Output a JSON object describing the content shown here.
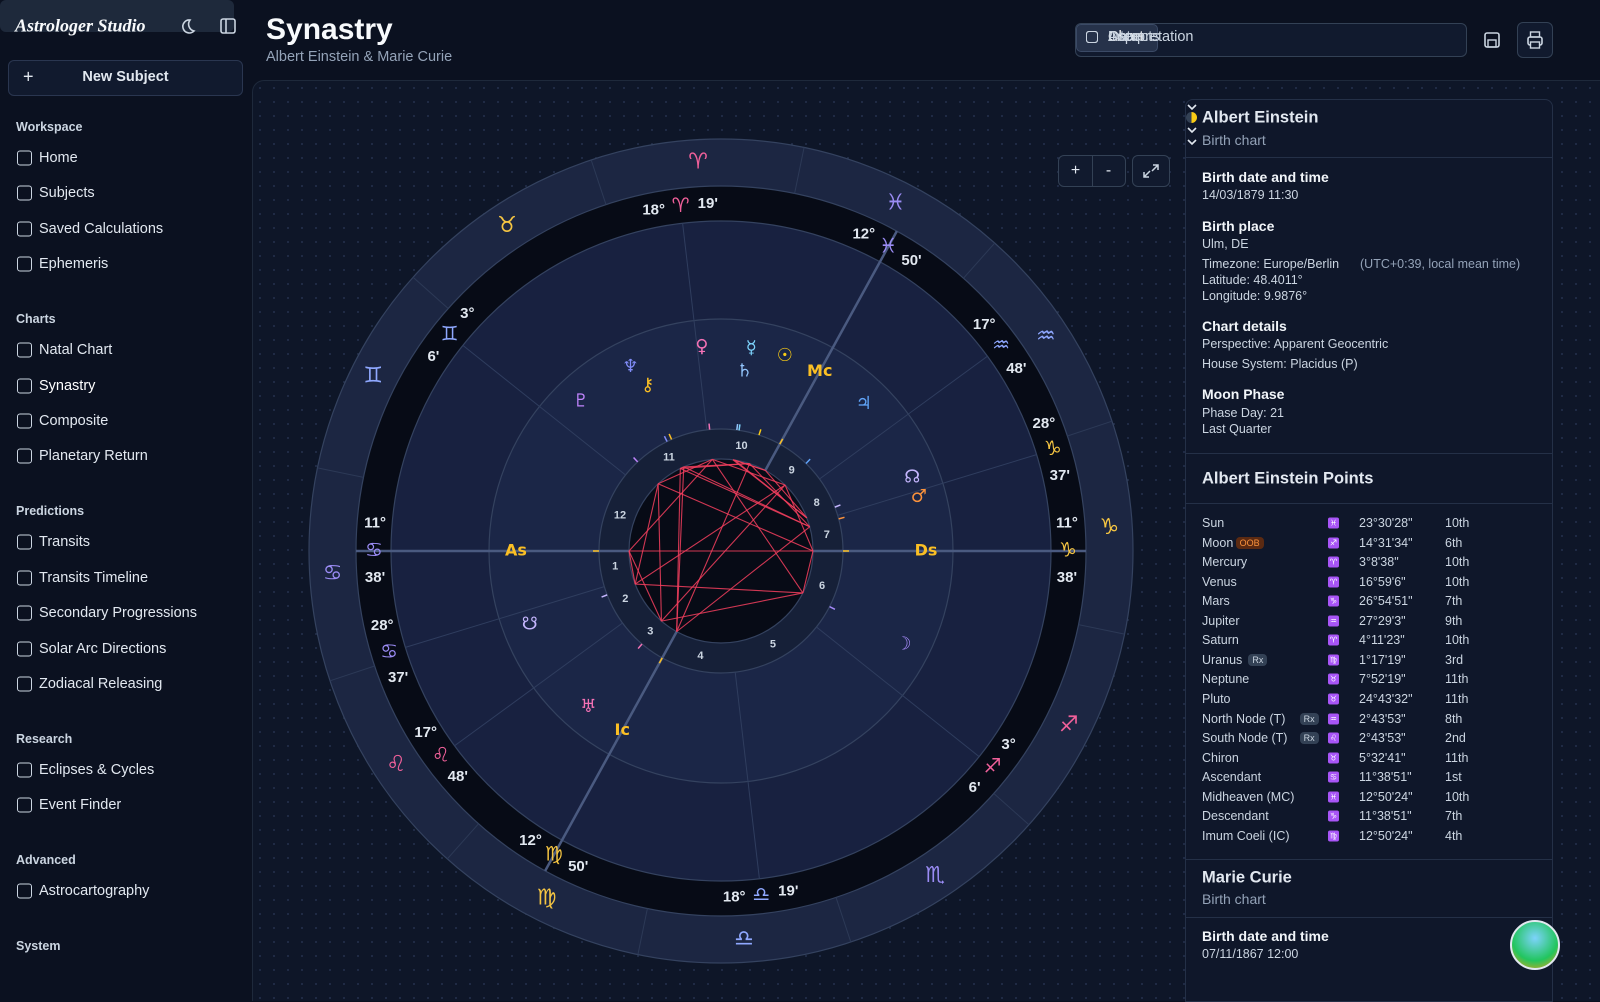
{
  "app": {
    "name": "Astrologer Studio"
  },
  "sidebar": {
    "new_subject": "New Subject",
    "sections": [
      {
        "title": "Workspace",
        "items": [
          "Home",
          "Subjects",
          "Saved Calculations",
          "Ephemeris"
        ]
      },
      {
        "title": "Charts",
        "items": [
          "Natal Chart",
          "Synastry",
          "Composite",
          "Planetary Return"
        ]
      },
      {
        "title": "Predictions",
        "items": [
          "Transits",
          "Transits Timeline",
          "Secondary Progressions",
          "Solar Arc Directions",
          "Zodiacal Releasing"
        ]
      },
      {
        "title": "Research",
        "items": [
          "Eclipses & Cycles",
          "Event Finder"
        ]
      },
      {
        "title": "Advanced",
        "items": [
          "Astrocartography"
        ]
      },
      {
        "title": "System",
        "items": []
      }
    ]
  },
  "header": {
    "title": "Synastry",
    "subtitle": "Albert Einstein & Marie Curie",
    "tabs": [
      "Chart",
      "Aspects",
      "Data",
      "Interpretation"
    ]
  },
  "wheel": {
    "zoom_in": "+",
    "zoom_out": "-",
    "signs": [
      "♈",
      "♉",
      "♊",
      "♋",
      "♌",
      "♍",
      "♎",
      "♏",
      "♐",
      "♑",
      "♒",
      "♓"
    ],
    "cusps": [
      {
        "deg": "11°",
        "sign": "♋",
        "min": "38'"
      },
      {
        "deg": "28°",
        "sign": "♋",
        "min": "37'"
      },
      {
        "deg": "17°",
        "sign": "♌",
        "min": "48'"
      },
      {
        "deg": "12°",
        "sign": "♍",
        "min": "50'"
      },
      {
        "deg": "18°",
        "sign": "♎",
        "min": "19'"
      },
      {
        "deg": "3°",
        "sign": "♐",
        "min": "6'"
      },
      {
        "deg": "11°",
        "sign": "♑",
        "min": "38'"
      },
      {
        "deg": "28°",
        "sign": "♑",
        "min": "37'"
      },
      {
        "deg": "17°",
        "sign": "♒",
        "min": "48'"
      },
      {
        "deg": "12°",
        "sign": "♓",
        "min": "50'"
      },
      {
        "deg": "18°",
        "sign": "♈",
        "min": "19'"
      },
      {
        "deg": "3°",
        "sign": "♊",
        "min": "6'"
      }
    ],
    "house_numbers": [
      "1",
      "2",
      "3",
      "4",
      "5",
      "6",
      "7",
      "8",
      "9",
      "10",
      "11",
      "12"
    ],
    "point_glyphs": [
      "☉",
      "☽",
      "☿",
      "♀",
      "♂",
      "♃",
      "♄",
      "♅",
      "♆",
      "♇",
      "☊",
      "☋",
      "⚷",
      "As",
      "Mc",
      "Ds",
      "Ic"
    ]
  },
  "panel": {
    "einstein": {
      "name": "Albert Einstein",
      "subtitle": "Birth chart",
      "birth_label": "Birth date and time",
      "birth": "14/03/1879 11:30",
      "place_label": "Birth place",
      "place": "Ulm, DE",
      "timezone": "Timezone: Europe/Berlin",
      "timezone_note": "(UTC+0:39, local mean time)",
      "latitude": "Latitude: 48.4011°",
      "longitude": "Longitude: 9.9876°",
      "details_label": "Chart details",
      "perspective": "Perspective: Apparent Geocentric",
      "house_system": "House System: Placidus (P)",
      "moon_label": "Moon Phase",
      "phase_day": "Phase Day: 21",
      "phase": "Last Quarter"
    },
    "points": {
      "title": "Albert Einstein Points",
      "rows": [
        {
          "name": "Sun",
          "sign": "♓",
          "position": "23°30'28\"",
          "house": "10th"
        },
        {
          "name": "Moon",
          "badge": "OOB",
          "sign": "♐",
          "position": "14°31'34\"",
          "house": "6th"
        },
        {
          "name": "Mercury",
          "sign": "♈",
          "position": "3°8'38\"",
          "house": "10th"
        },
        {
          "name": "Venus",
          "sign": "♈",
          "position": "16°59'6\"",
          "house": "10th"
        },
        {
          "name": "Mars",
          "sign": "♑",
          "position": "26°54'51\"",
          "house": "7th"
        },
        {
          "name": "Jupiter",
          "sign": "♒",
          "position": "27°29'3\"",
          "house": "9th"
        },
        {
          "name": "Saturn",
          "sign": "♈",
          "position": "4°11'23\"",
          "house": "10th"
        },
        {
          "name": "Uranus",
          "badge": "Rx",
          "sign": "♍",
          "position": "1°17'19\"",
          "house": "3rd"
        },
        {
          "name": "Neptune",
          "sign": "♉",
          "position": "7°52'19\"",
          "house": "11th"
        },
        {
          "name": "Pluto",
          "sign": "♉",
          "position": "24°43'32\"",
          "house": "11th"
        },
        {
          "name": "North Node (T)",
          "badge": "Rx",
          "sign": "♒",
          "position": "2°43'53\"",
          "house": "8th"
        },
        {
          "name": "South Node (T)",
          "badge": "Rx",
          "sign": "♌",
          "position": "2°43'53\"",
          "house": "2nd"
        },
        {
          "name": "Chiron",
          "sign": "♉",
          "position": "5°32'41\"",
          "house": "11th"
        },
        {
          "name": "Ascendant",
          "sign": "♋",
          "position": "11°38'51\"",
          "house": "1st"
        },
        {
          "name": "Midheaven (MC)",
          "sign": "♓",
          "position": "12°50'24\"",
          "house": "10th"
        },
        {
          "name": "Descendant",
          "sign": "♑",
          "position": "11°38'51\"",
          "house": "7th"
        },
        {
          "name": "Imum Coeli (IC)",
          "sign": "♍",
          "position": "12°50'24\"",
          "house": "4th"
        }
      ]
    },
    "curie": {
      "name": "Marie Curie",
      "subtitle": "Birth chart",
      "birth_label": "Birth date and time",
      "birth": "07/11/1867 12:00"
    }
  }
}
